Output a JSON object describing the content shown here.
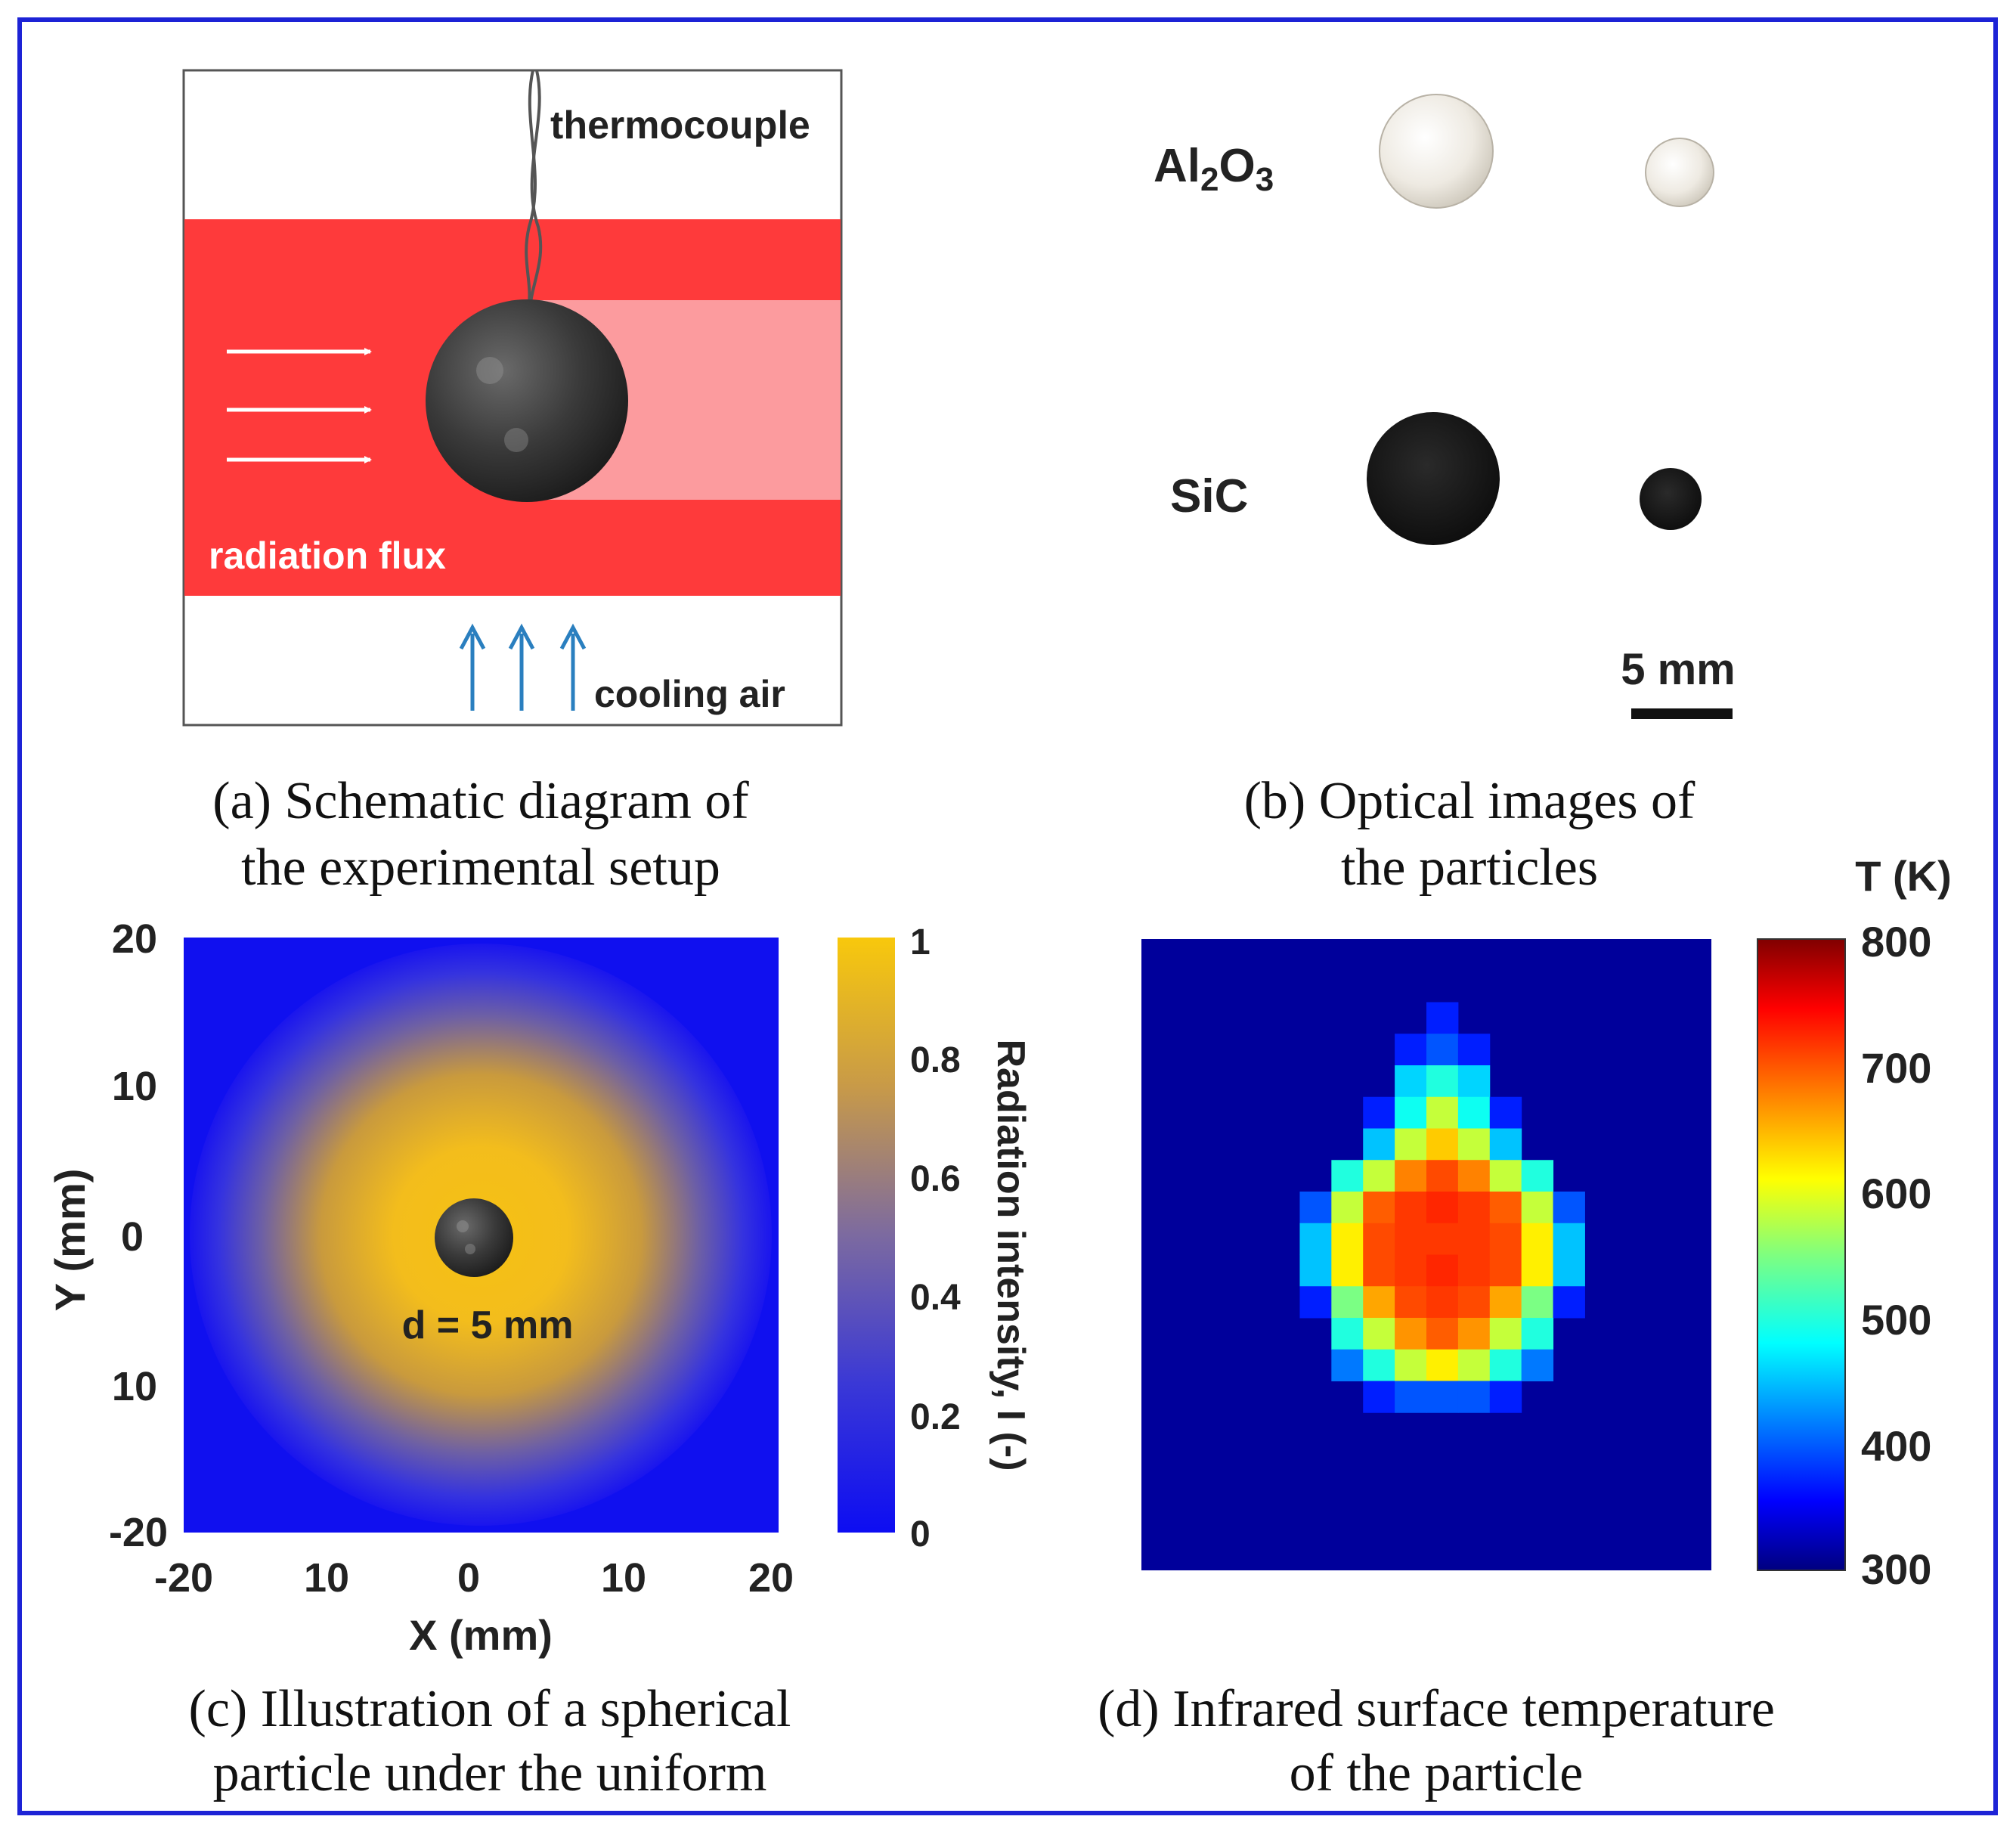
{
  "colors": {
    "frame": "#1d23d6",
    "flux_red": "#fe3a3b",
    "flux_pink": "#fc9b9e",
    "sphere_dark": "#333333",
    "arrow_blue": "#2a7fbf",
    "colormap_blue": "#1010ef",
    "colormap_gold": "#f6c113",
    "ir_background": "#00009b",
    "jet_low": "#00007f",
    "jet_high": "#800000"
  },
  "panel_a": {
    "label_thermocouple": "thermocouple",
    "label_radiation_flux": "radiation flux",
    "label_cooling_air": "cooling air",
    "caption_line1": "(a) Schematic diagram of",
    "caption_line2": "the experimental setup"
  },
  "panel_b": {
    "label_al2o3_main": "Al",
    "label_al2o3_sub1": "2",
    "label_al2o3_mid": "O",
    "label_al2o3_sub2": "3",
    "label_sic": "SiC",
    "scale_label": "5 mm",
    "caption_line1": "(b) Optical images of",
    "caption_line2": "the particles"
  },
  "panel_c": {
    "y_ticks": [
      "20",
      "10",
      "0",
      "10",
      "-20"
    ],
    "x_ticks": [
      "-20",
      "10",
      "0",
      "10",
      "20"
    ],
    "xlabel": "X (mm)",
    "ylabel": "Y (mm)",
    "particle_label": "d = 5 mm",
    "colorbar_ticks": [
      "1",
      "0.8",
      "0.6",
      "0.4",
      "0.2",
      "0"
    ],
    "colorbar_label": "Radiation intensity, I (-)",
    "caption_line1": "(c) Illustration of a spherical",
    "caption_line2": "particle under the uniform"
  },
  "panel_d": {
    "colorbar_title": "T (K)",
    "colorbar_ticks": [
      "800",
      "700",
      "600",
      "500",
      "400",
      "300"
    ],
    "caption_line1": "(d) Infrared surface temperature",
    "caption_line2": "of the particle"
  },
  "chart_data": [
    {
      "type": "heatmap",
      "title": "",
      "xlabel": "X (mm)",
      "ylabel": "Y (mm)",
      "xlim": [
        -20,
        20
      ],
      "ylim": [
        -20,
        20
      ],
      "colorbar_label": "Radiation intensity, I (-)",
      "colorbar_range": [
        0,
        1
      ],
      "description_values": {
        "center_intensity": 1,
        "edge_intensity": 0
      }
    },
    {
      "type": "heatmap",
      "title": "",
      "colorbar_title": "T (K)",
      "colorbar_range": [
        300,
        800
      ],
      "grid_values_K": [
        [
          300,
          300,
          300,
          300,
          300,
          300,
          300,
          300,
          300,
          300,
          300,
          300,
          300,
          300,
          300,
          300,
          300,
          300
        ],
        [
          300,
          300,
          300,
          300,
          300,
          300,
          300,
          300,
          300,
          300,
          300,
          300,
          300,
          300,
          300,
          300,
          300,
          300
        ],
        [
          300,
          300,
          300,
          300,
          300,
          300,
          300,
          300,
          300,
          330,
          300,
          300,
          300,
          300,
          300,
          300,
          300,
          300
        ],
        [
          300,
          300,
          300,
          300,
          300,
          300,
          300,
          300,
          330,
          360,
          330,
          300,
          300,
          300,
          300,
          300,
          300,
          300
        ],
        [
          300,
          300,
          300,
          300,
          300,
          300,
          300,
          300,
          430,
          470,
          430,
          300,
          300,
          300,
          300,
          300,
          300,
          300
        ],
        [
          300,
          300,
          300,
          300,
          300,
          300,
          300,
          330,
          460,
          560,
          460,
          330,
          300,
          300,
          300,
          300,
          300,
          300
        ],
        [
          300,
          300,
          300,
          300,
          300,
          300,
          300,
          420,
          560,
          620,
          560,
          420,
          300,
          300,
          300,
          300,
          300,
          300
        ],
        [
          300,
          300,
          300,
          300,
          300,
          300,
          470,
          560,
          660,
          690,
          660,
          560,
          470,
          300,
          300,
          300,
          300,
          300
        ],
        [
          300,
          300,
          300,
          300,
          300,
          360,
          560,
          680,
          700,
          710,
          700,
          680,
          560,
          360,
          300,
          300,
          300,
          300
        ],
        [
          300,
          300,
          300,
          300,
          300,
          420,
          600,
          690,
          700,
          700,
          700,
          690,
          600,
          420,
          300,
          300,
          300,
          300
        ],
        [
          300,
          300,
          300,
          300,
          300,
          420,
          600,
          690,
          700,
          710,
          700,
          690,
          600,
          420,
          300,
          300,
          300,
          300
        ],
        [
          300,
          300,
          300,
          300,
          300,
          330,
          520,
          640,
          690,
          700,
          690,
          640,
          520,
          330,
          300,
          300,
          300,
          300
        ],
        [
          300,
          300,
          300,
          300,
          300,
          300,
          470,
          560,
          650,
          680,
          650,
          560,
          470,
          300,
          300,
          300,
          300,
          300
        ],
        [
          300,
          300,
          300,
          300,
          300,
          300,
          380,
          470,
          560,
          600,
          560,
          470,
          380,
          300,
          300,
          300,
          300,
          300
        ],
        [
          300,
          300,
          300,
          300,
          300,
          300,
          300,
          330,
          360,
          360,
          360,
          330,
          300,
          300,
          300,
          300,
          300,
          300
        ],
        [
          300,
          300,
          300,
          300,
          300,
          300,
          300,
          300,
          300,
          300,
          300,
          300,
          300,
          300,
          300,
          300,
          300,
          300
        ],
        [
          300,
          300,
          300,
          300,
          300,
          300,
          300,
          300,
          300,
          300,
          300,
          300,
          300,
          300,
          300,
          300,
          300,
          300
        ],
        [
          300,
          300,
          300,
          300,
          300,
          300,
          300,
          300,
          300,
          300,
          300,
          300,
          300,
          300,
          300,
          300,
          300,
          300
        ],
        [
          300,
          300,
          300,
          300,
          300,
          300,
          300,
          300,
          300,
          300,
          300,
          300,
          300,
          300,
          300,
          300,
          300,
          300
        ],
        [
          300,
          300,
          300,
          300,
          300,
          300,
          300,
          300,
          300,
          300,
          300,
          300,
          300,
          300,
          300,
          300,
          300,
          300
        ]
      ]
    }
  ]
}
